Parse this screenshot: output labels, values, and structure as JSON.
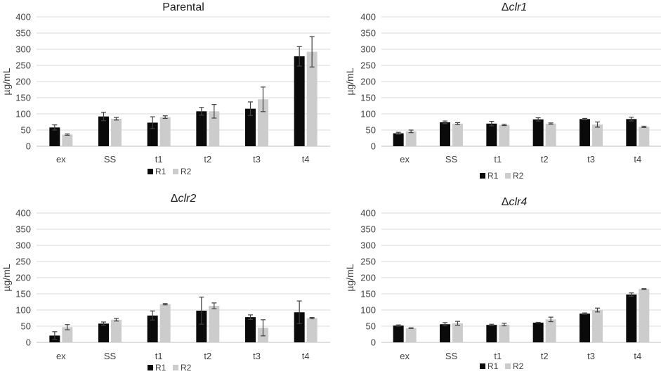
{
  "chart_data": [
    {
      "type": "bar",
      "title": "Parental",
      "title_prefix": "",
      "title_italic": false,
      "ylabel": "µg/mL",
      "xlabel": "",
      "ylim": [
        0,
        400
      ],
      "yticks": [
        "0",
        "50",
        "100",
        "150",
        "200",
        "250",
        "300",
        "350",
        "400"
      ],
      "categories": [
        "ex",
        "SS",
        "t1",
        "t2",
        "t3",
        "t4"
      ],
      "series": [
        {
          "name": "R1",
          "values": [
            58,
            92,
            73,
            108,
            116,
            278
          ],
          "errors": [
            8,
            13,
            18,
            12,
            21,
            30
          ]
        },
        {
          "name": "R2",
          "values": [
            36,
            85,
            90,
            108,
            145,
            292
          ],
          "errors": [
            2,
            4,
            4,
            21,
            38,
            47
          ]
        }
      ],
      "legend": [
        "R1",
        "R2"
      ],
      "legend_position": "bottom"
    },
    {
      "type": "bar",
      "title": "clr1",
      "title_prefix": "Δ",
      "title_italic": true,
      "ylabel": "µg/mL",
      "xlabel": "",
      "ylim": [
        0,
        400
      ],
      "yticks": [
        "0",
        "50",
        "100",
        "150",
        "200",
        "250",
        "300",
        "350",
        "400"
      ],
      "categories": [
        "ex",
        "SS",
        "t1",
        "t2",
        "t3",
        "t4"
      ],
      "series": [
        {
          "name": "R1",
          "values": [
            40,
            74,
            70,
            83,
            84,
            84
          ],
          "errors": [
            3,
            4,
            7,
            5,
            2,
            6
          ]
        },
        {
          "name": "R2",
          "values": [
            46,
            70,
            66,
            70,
            67,
            60
          ],
          "errors": [
            4,
            3,
            2,
            2,
            8,
            2
          ]
        }
      ],
      "legend": [
        "R1",
        "R2"
      ],
      "legend_position": "bottom"
    },
    {
      "type": "bar",
      "title": "clr2",
      "title_prefix": "Δ",
      "title_italic": true,
      "ylabel": "µg/mL",
      "xlabel": "",
      "ylim": [
        0,
        400
      ],
      "yticks": [
        "0",
        "50",
        "100",
        "150",
        "200",
        "250",
        "300",
        "350",
        "400"
      ],
      "categories": [
        "ex",
        "SS",
        "t1",
        "t2",
        "t3",
        "t4"
      ],
      "series": [
        {
          "name": "R1",
          "values": [
            21,
            58,
            83,
            98,
            78,
            93
          ],
          "errors": [
            12,
            5,
            14,
            42,
            7,
            35
          ]
        },
        {
          "name": "R2",
          "values": [
            47,
            70,
            118,
            113,
            45,
            75
          ],
          "errors": [
            8,
            4,
            2,
            9,
            25,
            2
          ]
        }
      ],
      "legend": [
        "R1",
        "R2"
      ],
      "legend_position": "bottom"
    },
    {
      "type": "bar",
      "title": "clr4",
      "title_prefix": "Δ",
      "title_italic": true,
      "ylabel": "µg/mL",
      "xlabel": "",
      "ylim": [
        0,
        400
      ],
      "yticks": [
        "0",
        "50",
        "100",
        "150",
        "200",
        "250",
        "300",
        "350",
        "400"
      ],
      "categories": [
        "ex",
        "SS",
        "t1",
        "t2",
        "t3",
        "t4"
      ],
      "series": [
        {
          "name": "R1",
          "values": [
            52,
            56,
            54,
            61,
            89,
            148
          ],
          "errors": [
            2,
            5,
            2,
            1,
            2,
            5
          ]
        },
        {
          "name": "R2",
          "values": [
            44,
            59,
            55,
            71,
            100,
            165
          ],
          "errors": [
            1,
            6,
            4,
            7,
            6,
            1
          ]
        }
      ],
      "legend": [
        "R1",
        "R2"
      ],
      "legend_position": "bottom"
    }
  ],
  "colors": {
    "R1": "#0a0a0a",
    "R2": "#cccccc"
  }
}
